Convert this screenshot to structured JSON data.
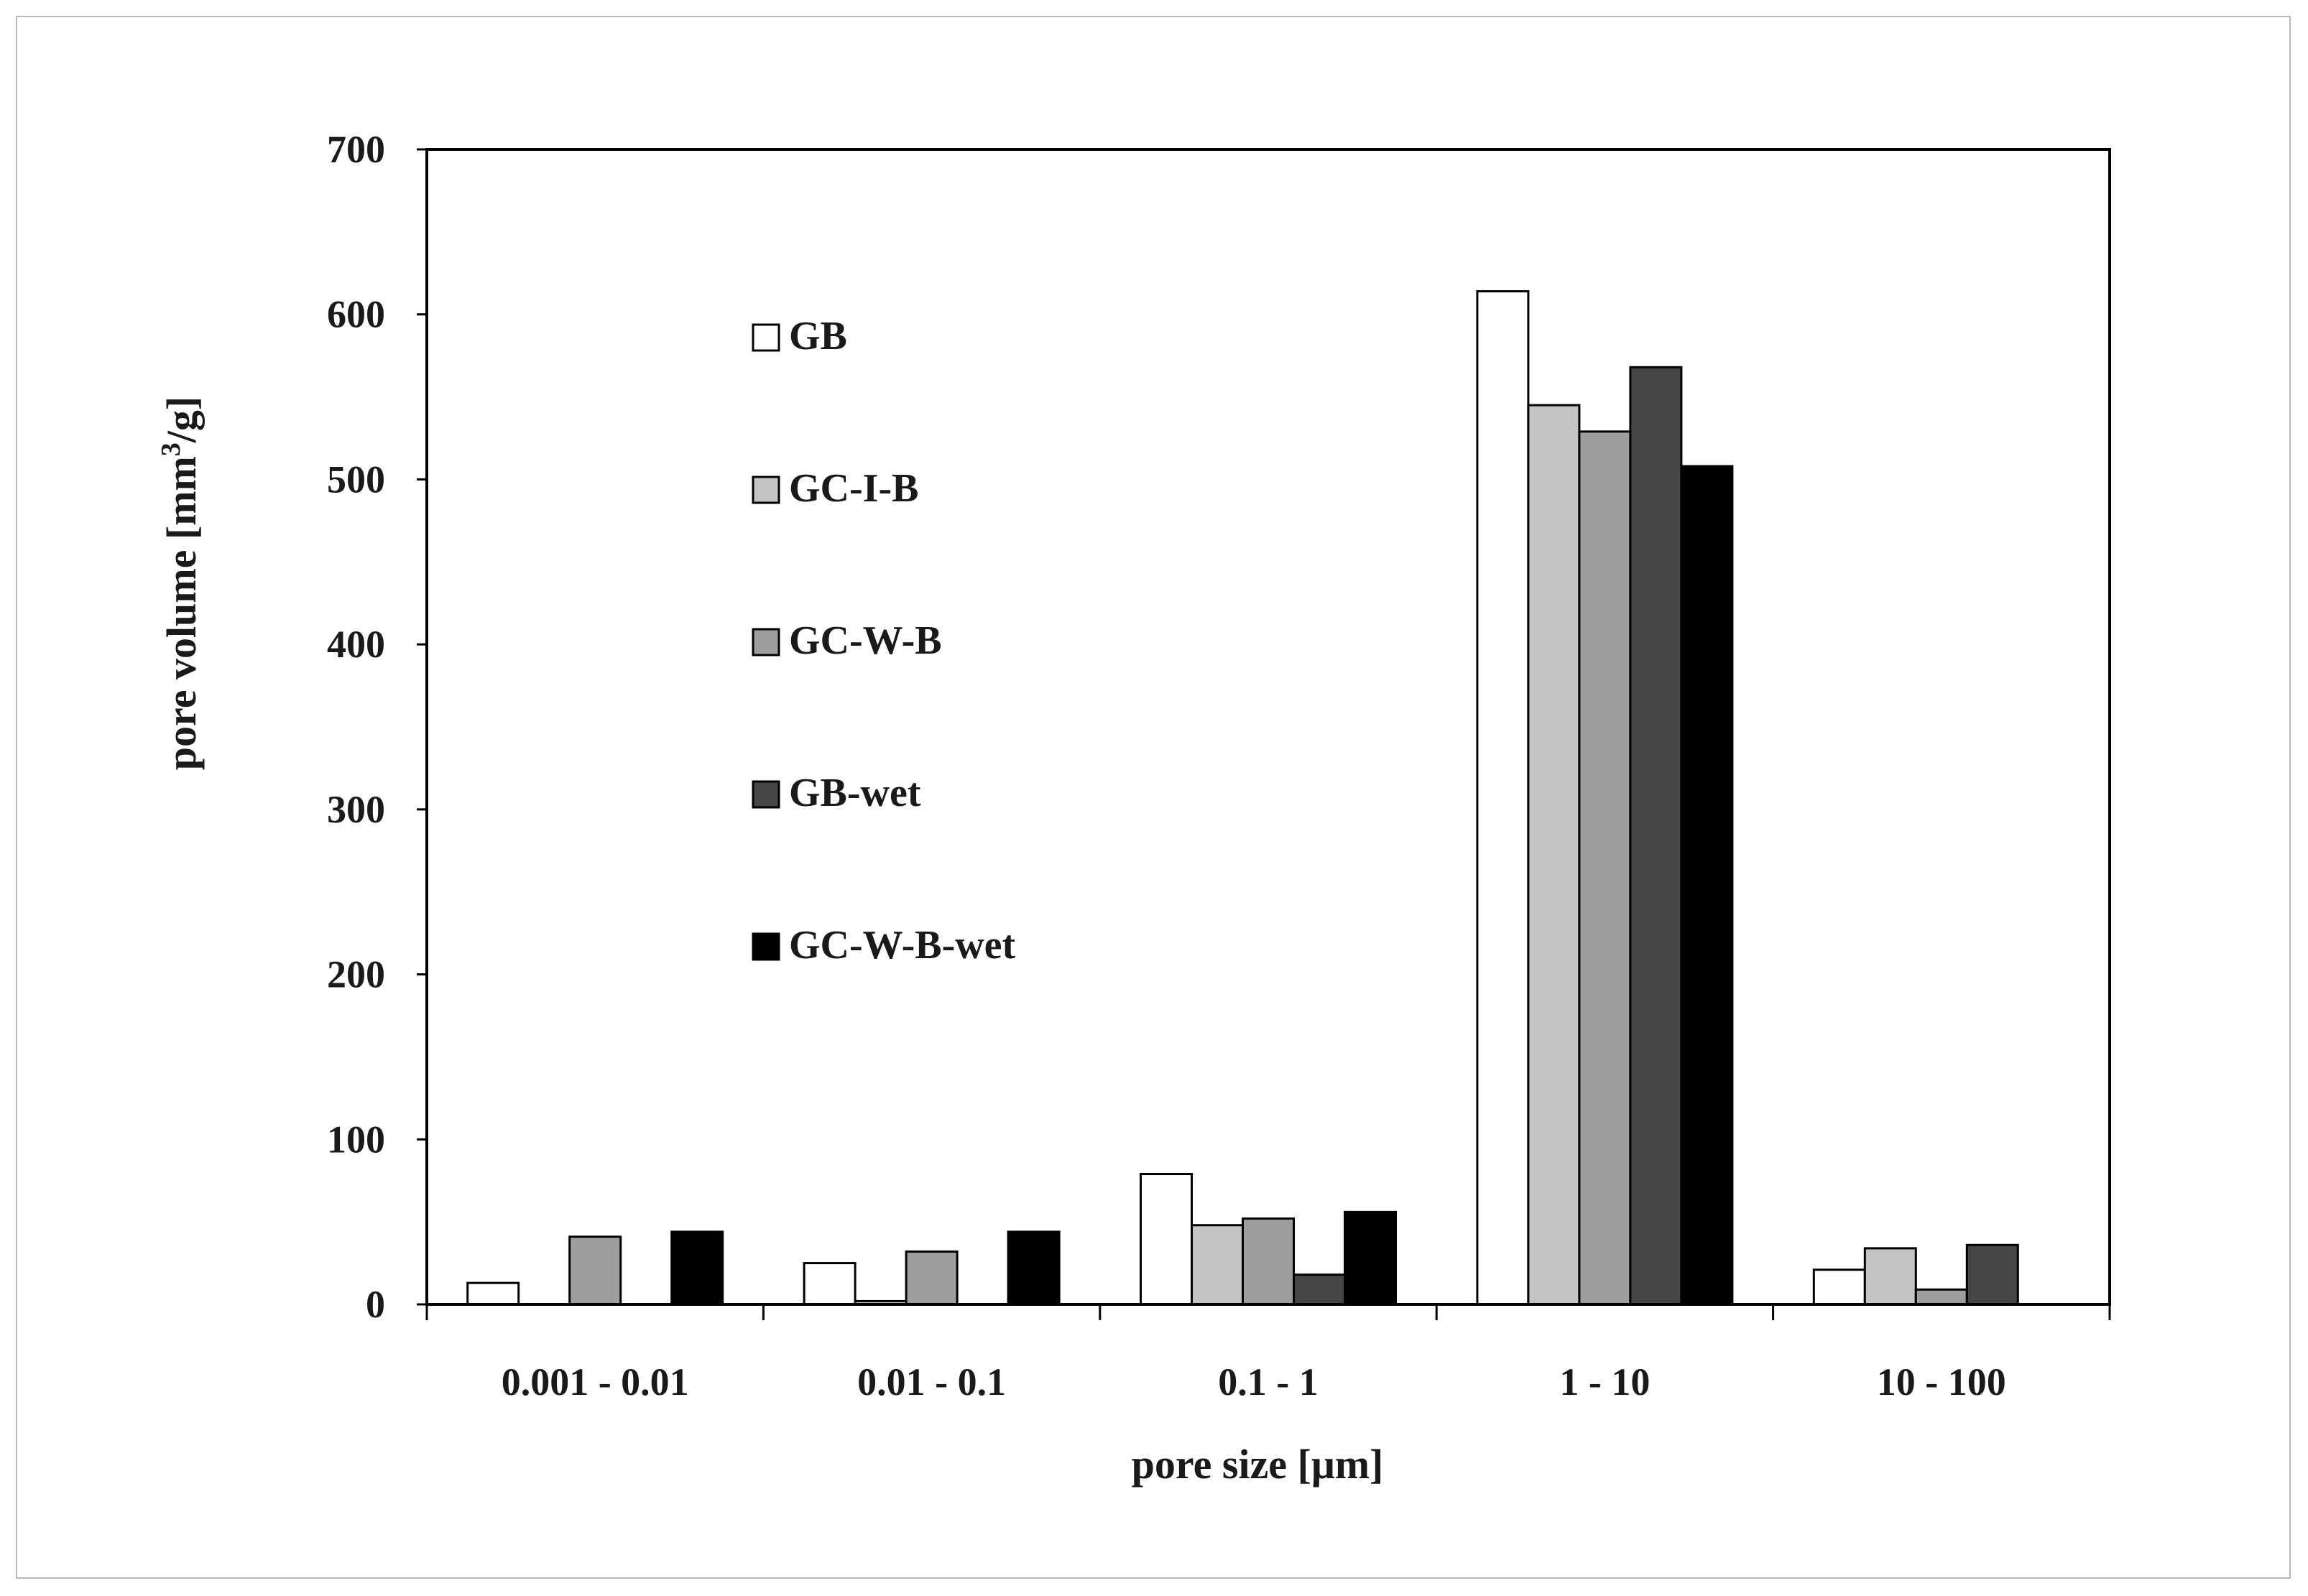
{
  "chart_data": {
    "type": "bar",
    "title": "",
    "xlabel": "pore size [μm]",
    "ylabel_main": "pore volume [mm",
    "ylabel_sup": "3",
    "ylabel_tail": "/g]",
    "ylabel": "pore volume [mm3/g]",
    "ylim": [
      0,
      700
    ],
    "yticks": [
      0,
      100,
      200,
      300,
      400,
      500,
      600,
      700
    ],
    "ytick_labels": [
      "0",
      "100",
      "200",
      "300",
      "400",
      "500",
      "600",
      "700"
    ],
    "categories": [
      "0.001 - 0.01",
      "0.01 - 0.1",
      "0.1 - 1",
      "1 - 10",
      "10 - 100"
    ],
    "legend_position": "upper-left inside plot",
    "series": [
      {
        "name": "GB",
        "color": "#ffffff",
        "values": [
          13,
          25,
          79,
          614,
          21
        ]
      },
      {
        "name": "GC-I-B",
        "color": "#c4c4c4",
        "values": [
          0,
          2,
          48,
          545,
          34
        ]
      },
      {
        "name": "GC-W-B",
        "color": "#9e9e9e",
        "values": [
          41,
          32,
          52,
          529,
          9
        ]
      },
      {
        "name": "GB-wet",
        "color": "#464646",
        "values": [
          0,
          0,
          18,
          568,
          36
        ]
      },
      {
        "name": "GC-W-B-wet",
        "color": "#000000",
        "values": [
          44,
          44,
          56,
          508,
          0
        ]
      }
    ]
  }
}
